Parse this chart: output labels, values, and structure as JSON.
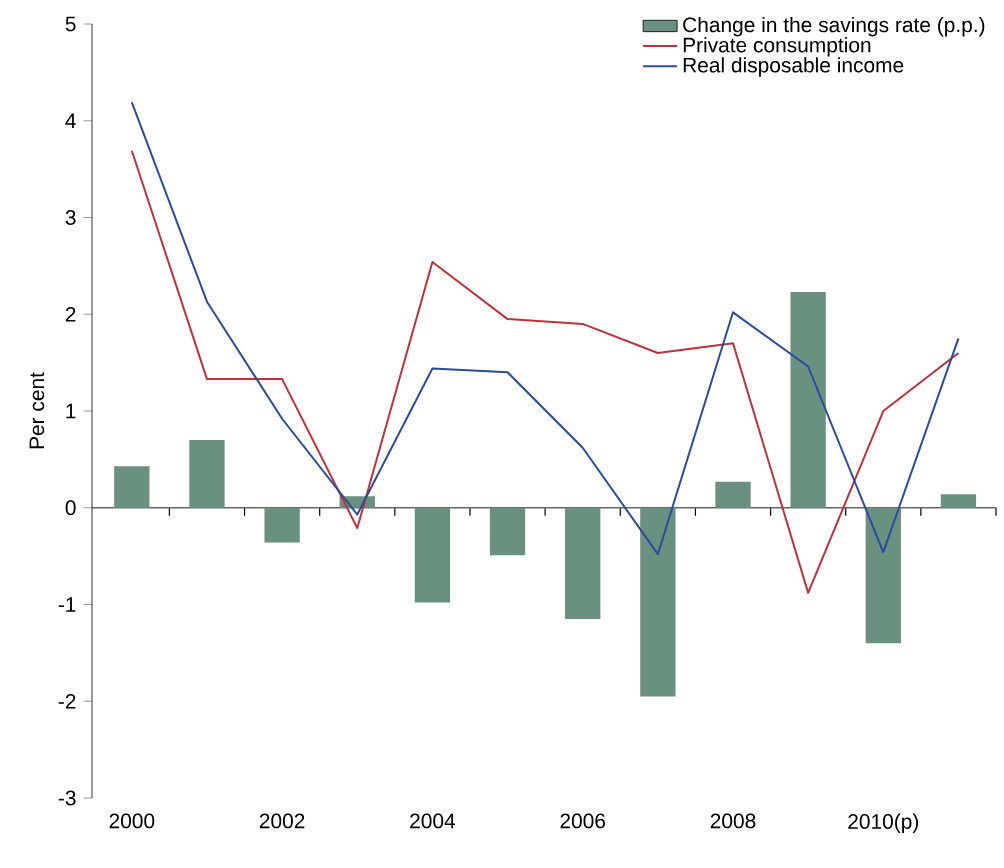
{
  "chart_data": {
    "type": "bar",
    "ylabel": "Per cent",
    "categories": [
      "2000",
      null,
      "2002",
      null,
      "2004",
      null,
      "2006",
      null,
      "2008",
      null,
      "2010(p)",
      null
    ],
    "series": [
      {
        "name": "Change in the savings rate (p.p.)",
        "color": "#6a9080",
        "values": [
          0.43,
          0.7,
          -0.36,
          0.12,
          -0.98,
          -0.49,
          -1.15,
          -1.95,
          0.27,
          2.23,
          -1.4,
          0.14
        ]
      },
      {
        "name": "Private consumption",
        "type": "line",
        "color": "#c0313a",
        "values": [
          3.69,
          1.33,
          1.33,
          -0.21,
          2.54,
          1.95,
          1.9,
          1.6,
          1.7,
          -0.88,
          1.0,
          1.6
        ]
      },
      {
        "name": "Real disposable income",
        "type": "line",
        "color": "#2a4b9e",
        "values": [
          4.19,
          2.13,
          0.92,
          -0.07,
          1.44,
          1.4,
          0.62,
          -0.48,
          2.02,
          1.46,
          -0.46,
          1.75
        ]
      }
    ],
    "ylim": [
      -3,
      5
    ],
    "yticks": [
      -3,
      -2,
      -1,
      0,
      1,
      2,
      3,
      4,
      5
    ],
    "legend": "top right",
    "marker": "none",
    "line_style": "solid"
  }
}
